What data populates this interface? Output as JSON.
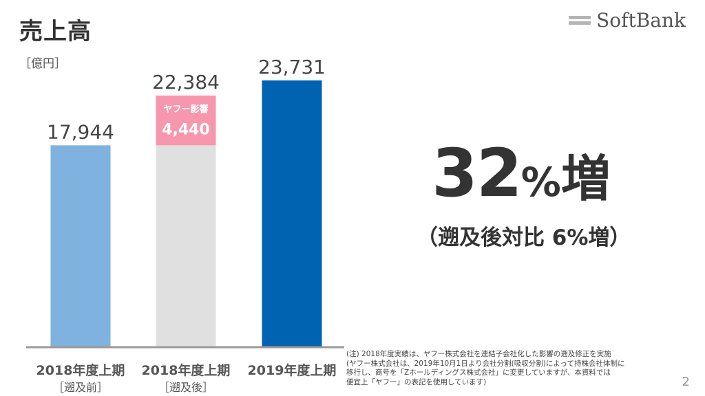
{
  "page": {
    "title": "売上高",
    "logo_text": "SoftBank",
    "page_number": "2"
  },
  "chart_data": {
    "type": "bar",
    "stacked": true,
    "unit_label": "［億円］",
    "categories": [
      {
        "line1": "2018年度上期",
        "line2": "［遡及前］"
      },
      {
        "line1": "2018年度上期",
        "line2": "［遡及後］"
      },
      {
        "line1": "2019年度上期",
        "line2": ""
      }
    ],
    "totals": [
      "17,944",
      "22,384",
      "23,731"
    ],
    "series": [
      {
        "values": [
          17944,
          17944,
          23731
        ],
        "colors": [
          "#7fb2df",
          "#e0e0e0",
          "#0063b1"
        ]
      },
      {
        "values": [
          0,
          4440,
          0
        ],
        "colors": [
          "#f797ad",
          "#f797ad",
          "#f797ad"
        ]
      }
    ],
    "segment_labels": [
      {
        "bar_index": 1,
        "series_index": 1,
        "title": "ヤフー影響",
        "value": "4,440"
      }
    ],
    "ylim": [
      0,
      23731
    ]
  },
  "highlight": {
    "number": "32",
    "percent": "%",
    "suffix": "増",
    "sub": "（遡及後対比 6%増）"
  },
  "note_lines": [
    "(注) 2018年度実績は、ヤフー株式会社を連結子会社化した影響の遡及修正を実施",
    "(ヤフー株式会社は、2019年10月1日より会社分割(吸収分割)によって持株会社体制に",
    "移行し、商号を「Zホールディングス株式会社」に変更していますが、本資料では",
    "便宜上「ヤフー」の表記を使用しています)"
  ]
}
